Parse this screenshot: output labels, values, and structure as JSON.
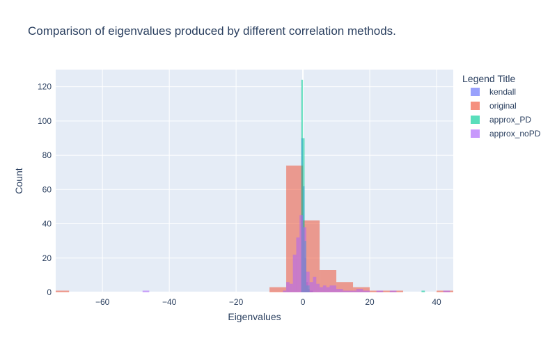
{
  "chart_data": {
    "type": "bar",
    "title": "Comparison of eigenvalues produced by different correlation methods.",
    "xlabel": "Eigenvalues",
    "ylabel": "Count",
    "xlim": [
      -74,
      45
    ],
    "ylim": [
      0,
      130
    ],
    "x_ticks": [
      -60,
      -40,
      -20,
      0,
      20,
      40
    ],
    "y_ticks": [
      0,
      20,
      40,
      60,
      80,
      100,
      120
    ],
    "barmode": "overlay",
    "grid": true,
    "legend_title": "Legend Title",
    "legend_position": "right",
    "series": [
      {
        "name": "kendall",
        "color": "#636efa",
        "bins": [
          {
            "x0": -0.5,
            "x1": 0.0,
            "count": 90
          },
          {
            "x0": 0.0,
            "x1": 0.5,
            "count": 62
          },
          {
            "x0": 0.5,
            "x1": 1.0,
            "count": 20
          },
          {
            "x0": 1.0,
            "x1": 1.5,
            "count": 6
          },
          {
            "x0": 1.5,
            "x1": 2.0,
            "count": 2
          },
          {
            "x0": 2.0,
            "x1": 3.0,
            "count": 1
          }
        ]
      },
      {
        "name": "original",
        "color": "#ef553b",
        "bins": [
          {
            "x0": -75,
            "x1": -70,
            "count": 1
          },
          {
            "x0": -10,
            "x1": -5,
            "count": 3
          },
          {
            "x0": -5,
            "x1": 0,
            "count": 74
          },
          {
            "x0": 0,
            "x1": 5,
            "count": 42
          },
          {
            "x0": 5,
            "x1": 10,
            "count": 13
          },
          {
            "x0": 10,
            "x1": 15,
            "count": 6
          },
          {
            "x0": 15,
            "x1": 20,
            "count": 3
          },
          {
            "x0": 20,
            "x1": 25,
            "count": 1
          },
          {
            "x0": 25,
            "x1": 30,
            "count": 1
          },
          {
            "x0": 40,
            "x1": 45,
            "count": 1
          }
        ]
      },
      {
        "name": "approx_PD",
        "color": "#00cc96",
        "bins": [
          {
            "x0": -0.5,
            "x1": 0.0,
            "count": 124
          },
          {
            "x0": 0.0,
            "x1": 0.5,
            "count": 90
          },
          {
            "x0": 0.5,
            "x1": 1.0,
            "count": 30
          },
          {
            "x0": 1.0,
            "x1": 2.0,
            "count": 4
          },
          {
            "x0": 35.5,
            "x1": 36.5,
            "count": 1
          }
        ]
      },
      {
        "name": "approx_noPD",
        "color": "#ab63fa",
        "bins": [
          {
            "x0": -48,
            "x1": -46,
            "count": 1
          },
          {
            "x0": -6,
            "x1": -5,
            "count": 1
          },
          {
            "x0": -5,
            "x1": -4,
            "count": 6
          },
          {
            "x0": -4,
            "x1": -3,
            "count": 5
          },
          {
            "x0": -3,
            "x1": -2,
            "count": 22
          },
          {
            "x0": -2,
            "x1": -1,
            "count": 32
          },
          {
            "x0": -1,
            "x1": 0,
            "count": 45
          },
          {
            "x0": 0,
            "x1": 1,
            "count": 38
          },
          {
            "x0": 1,
            "x1": 2,
            "count": 12
          },
          {
            "x0": 2,
            "x1": 3,
            "count": 6
          },
          {
            "x0": 3,
            "x1": 4,
            "count": 9
          },
          {
            "x0": 4,
            "x1": 5,
            "count": 5
          },
          {
            "x0": 5,
            "x1": 6,
            "count": 3
          },
          {
            "x0": 6,
            "x1": 7,
            "count": 4
          },
          {
            "x0": 7,
            "x1": 8,
            "count": 3
          },
          {
            "x0": 8,
            "x1": 10,
            "count": 4
          },
          {
            "x0": 10,
            "x1": 12,
            "count": 2
          },
          {
            "x0": 12,
            "x1": 16,
            "count": 1
          },
          {
            "x0": 16,
            "x1": 18,
            "count": 2
          },
          {
            "x0": 18,
            "x1": 20,
            "count": 1
          },
          {
            "x0": 22,
            "x1": 24,
            "count": 1
          },
          {
            "x0": 26,
            "x1": 28,
            "count": 1
          },
          {
            "x0": 42,
            "x1": 44,
            "count": 1
          }
        ]
      }
    ]
  },
  "style": {
    "plot_bg": "#e5ecf6",
    "grid_color": "#ffffff",
    "text_color": "#2a3f5f",
    "bar_opacity": 0.55
  }
}
